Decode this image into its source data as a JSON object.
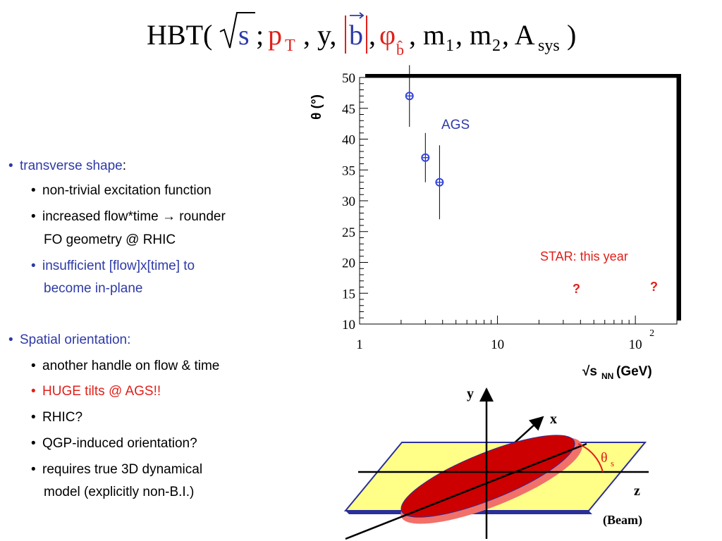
{
  "formula": {
    "hbt": "HBT(",
    "s": "s",
    "semi": ";",
    "p": "p",
    "p_sub": "T",
    "y": ", y,",
    "b": "b",
    "comma1": ",",
    "phi": "φ",
    "phi_sub": "b̂",
    "m1": ", m",
    "m1_sub": "1",
    "m2": ", m",
    "m2_sub": "2",
    "a": ", A",
    "a_sub": "sys",
    "close": ")"
  },
  "bullets": {
    "b1": {
      "prefix": "transverse shape",
      "suffix": ":"
    },
    "b1a": "non-trivial excitation function",
    "b1b_l1": "increased flow*time ",
    "b1b_arrow": "→",
    "b1b_l1_end": " rounder",
    "b1b_l2": "FO geometry @ RHIC",
    "b1c_l1": "insufficient [flow]x[time] to",
    "b1c_l2": "become in-plane",
    "b2": "Spatial orientation:",
    "b2a": "another handle on flow & time",
    "b2b": "HUGE tilts @ AGS!!",
    "b2c": "RHIC?",
    "b2d": "QGP-induced orientation?",
    "b2e_l1": "requires true 3D dynamical",
    "b2e_l2": "model (explicitly non-B.I.)"
  },
  "colors": {
    "blue": "#2e3aa8",
    "red": "#e0201a",
    "point": "#3344dd",
    "ellipse": "#cc0000",
    "ellipse_shadow": "#f2706a",
    "plane": "#ffff88",
    "plane_edge": "#2b2f9a"
  },
  "chart_data": {
    "type": "scatter",
    "xscale": "log",
    "xlim": [
      1,
      200
    ],
    "ylim": [
      10,
      50
    ],
    "yticks": [
      "10",
      "15",
      "20",
      "25",
      "30",
      "35",
      "40",
      "45",
      "50"
    ],
    "xticks": [
      "1",
      "10",
      "10"
    ],
    "xtick_exp": "2",
    "xlabel": "√s",
    "xlabel_sub": "NN",
    "xlabel_unit": " (GeV)",
    "ylabel": "θ (°)",
    "series": [
      {
        "name": "AGS",
        "x": [
          2.3,
          3.0,
          3.8
        ],
        "y": [
          47,
          37,
          33
        ],
        "err": [
          5,
          4,
          6
        ]
      }
    ],
    "annotations": {
      "ags": "AGS",
      "star": "STAR: this year",
      "q1": "?",
      "q2": "?"
    }
  },
  "diagram": {
    "y": "y",
    "x": "x",
    "z": "z",
    "theta": "θ",
    "theta_sub": "s",
    "beam": "(Beam)"
  }
}
